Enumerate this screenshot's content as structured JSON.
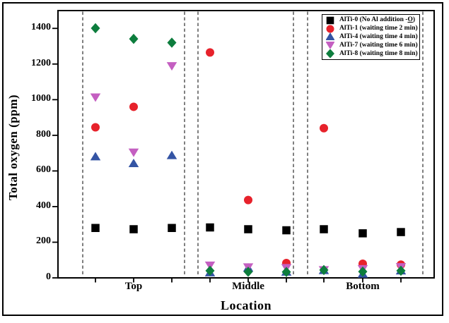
{
  "chart_data": {
    "type": "scatter",
    "title": "",
    "xlabel": "Location",
    "ylabel": "Total oxygen (ppm)",
    "groups": [
      "Top",
      "Middle",
      "Bottom"
    ],
    "columns_per_group": 3,
    "ylim": [
      0,
      1500
    ],
    "yticks": [
      0,
      200,
      400,
      600,
      800,
      1000,
      1200,
      1400
    ],
    "grid": false,
    "legend_position": "top-right",
    "group_divider_style": "dashed",
    "divider_color": "#4a4a4a",
    "series": [
      {
        "name": "AlTi-0 (No Al addition -O)",
        "underline_last": true,
        "marker": "square",
        "color": "#000000",
        "values": [
          280,
          273,
          280,
          283,
          273,
          267,
          273,
          250,
          257
        ]
      },
      {
        "name": "AlTi-1 (waiting time 2 min)",
        "marker": "circle",
        "color": "#e7222b",
        "values": [
          845,
          960,
          null,
          1265,
          437,
          83,
          840,
          79,
          74
        ]
      },
      {
        "name": "AlTi-4 (waiting time 4 min)",
        "marker": "triangle-up",
        "color": "#3454a4",
        "values": [
          681,
          643,
          688,
          30,
          57,
          34,
          43,
          23,
          41
        ]
      },
      {
        "name": "AlTi-7 (waiting time 6 min)",
        "marker": "triangle-down",
        "color": "#c45fc1",
        "values": [
          1013,
          704,
          1189,
          70,
          60,
          56,
          44,
          50,
          61
        ]
      },
      {
        "name": "AlTi-8 (waiting time 8 min)",
        "marker": "diamond",
        "color": "#0d7d3d",
        "values": [
          1401,
          1341,
          1320,
          40,
          34,
          33,
          44,
          35,
          40
        ]
      }
    ]
  }
}
